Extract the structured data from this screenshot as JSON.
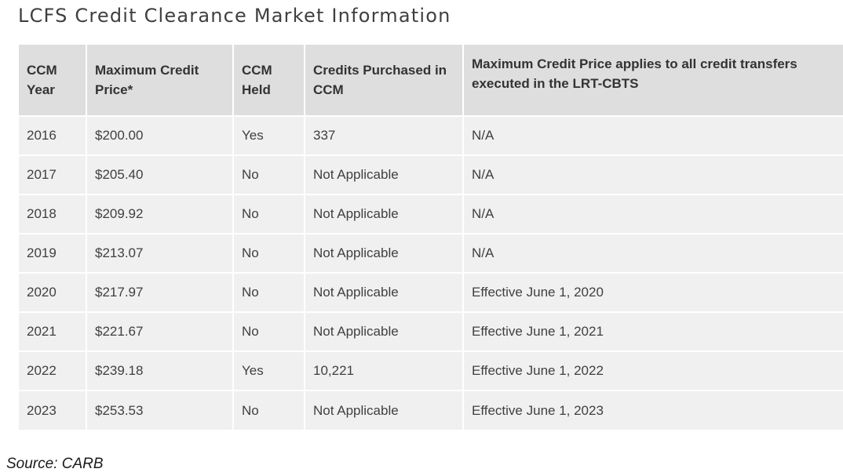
{
  "title": "LCFS Credit Clearance Market Information",
  "table": {
    "headers": [
      "CCM Year",
      "Maximum Credit Price*",
      "CCM Held",
      "Credits Purchased in CCM",
      "Maximum Credit Price applies to all credit transfers executed in the LRT-CBTS"
    ],
    "rows": [
      [
        "2016",
        "$200.00",
        "Yes",
        "337",
        "N/A"
      ],
      [
        "2017",
        "$205.40",
        "No",
        "Not Applicable",
        "N/A"
      ],
      [
        "2018",
        "$209.92",
        "No",
        "Not Applicable",
        "N/A"
      ],
      [
        "2019",
        "$213.07",
        "No",
        "Not Applicable",
        "N/A"
      ],
      [
        "2020",
        "$217.97",
        "No",
        "Not Applicable",
        "Effective June 1, 2020"
      ],
      [
        "2021",
        "$221.67",
        "No",
        "Not Applicable",
        "Effective June 1, 2021"
      ],
      [
        "2022",
        "$239.18",
        "Yes",
        "10,221",
        "Effective June 1, 2022"
      ],
      [
        "2023",
        "$253.53",
        "No",
        "Not Applicable",
        "Effective June 1, 2023"
      ]
    ]
  },
  "source": "Source: CARB"
}
